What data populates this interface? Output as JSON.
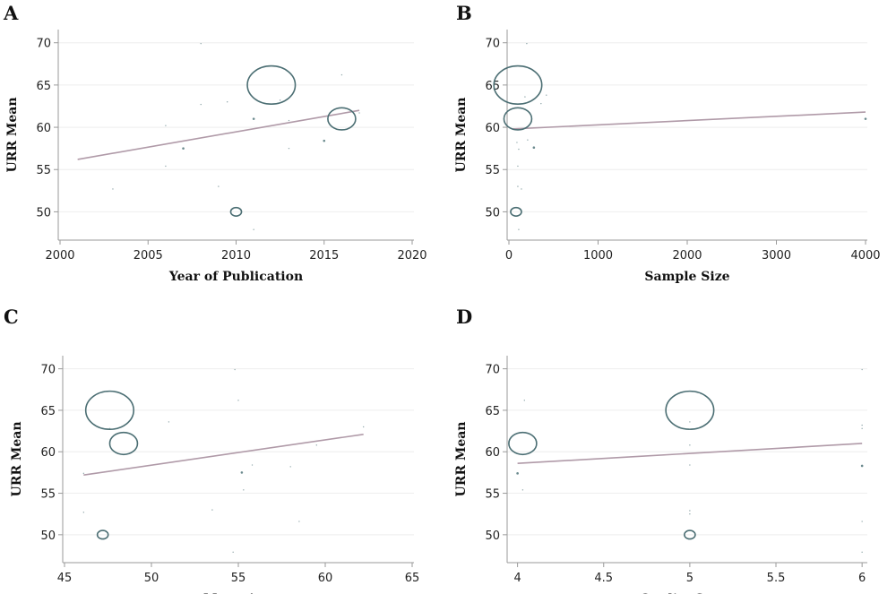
{
  "chart_data": [
    {
      "panel": "A",
      "type": "scatter",
      "xlabel": "Year of Publication",
      "ylabel": "URR Mean",
      "xlim": [
        2000,
        2020
      ],
      "ylim": [
        47.5,
        70.5
      ],
      "xticks": [
        2000,
        2005,
        2010,
        2015,
        2020
      ],
      "yticks": [
        50,
        55,
        60,
        65,
        70
      ],
      "grid": "horizontal",
      "fit_line": [
        [
          2001,
          56.2
        ],
        [
          2017,
          62.0
        ]
      ],
      "points": [
        {
          "x": 2012,
          "y": 65,
          "w": 5.5
        },
        {
          "x": 2016,
          "y": 61,
          "w": 3.0
        },
        {
          "x": 2010,
          "y": 50,
          "w": 0.9
        },
        {
          "x": 2011,
          "y": 61,
          "w": 0.7
        },
        {
          "x": 2015,
          "y": 58.4,
          "w": 0.5
        },
        {
          "x": 2007,
          "y": 57.5,
          "w": 0.5
        },
        {
          "x": 2008,
          "y": 69.9,
          "w": 0.3
        },
        {
          "x": 2016,
          "y": 66.2,
          "w": 0.3
        },
        {
          "x": 2008,
          "y": 62.7,
          "w": 0.3
        },
        {
          "x": 2009.5,
          "y": 63.0,
          "w": 0.3
        },
        {
          "x": 2012.5,
          "y": 63.2,
          "w": 0.3
        },
        {
          "x": 2013,
          "y": 60.8,
          "w": 0.3
        },
        {
          "x": 2006,
          "y": 60.2,
          "w": 0.3
        },
        {
          "x": 2013,
          "y": 57.5,
          "w": 0.3
        },
        {
          "x": 2006,
          "y": 55.4,
          "w": 0.3
        },
        {
          "x": 2003,
          "y": 52.7,
          "w": 0.3
        },
        {
          "x": 2009,
          "y": 53.0,
          "w": 0.3
        },
        {
          "x": 2011,
          "y": 47.9,
          "w": 0.3
        },
        {
          "x": 2017,
          "y": 61.7,
          "w": 0.3
        }
      ]
    },
    {
      "panel": "B",
      "type": "scatter",
      "xlabel": "Sample Size",
      "ylabel": "URR Mean",
      "xlim": [
        0,
        4000
      ],
      "ylim": [
        47.5,
        70.5
      ],
      "xticks": [
        0,
        1000,
        2000,
        3000,
        4000
      ],
      "yticks": [
        50,
        55,
        60,
        65,
        70
      ],
      "grid": "horizontal",
      "fit_line": [
        [
          40,
          59.8
        ],
        [
          4000,
          61.8
        ]
      ],
      "points": [
        {
          "x": 100,
          "y": 65,
          "w": 5.5
        },
        {
          "x": 100,
          "y": 61,
          "w": 3.0
        },
        {
          "x": 80,
          "y": 50,
          "w": 0.9
        },
        {
          "x": 4000,
          "y": 61,
          "w": 0.7
        },
        {
          "x": 200,
          "y": 69.9,
          "w": 0.3
        },
        {
          "x": 420,
          "y": 63.8,
          "w": 0.3
        },
        {
          "x": 360,
          "y": 62.8,
          "w": 0.3
        },
        {
          "x": 180,
          "y": 63.6,
          "w": 0.3
        },
        {
          "x": 280,
          "y": 57.6,
          "w": 0.5
        },
        {
          "x": 210,
          "y": 58.5,
          "w": 0.3
        },
        {
          "x": 90,
          "y": 58.2,
          "w": 0.3
        },
        {
          "x": 110,
          "y": 57.4,
          "w": 0.3
        },
        {
          "x": 100,
          "y": 55.4,
          "w": 0.3
        },
        {
          "x": 140,
          "y": 52.7,
          "w": 0.3
        },
        {
          "x": 100,
          "y": 53.0,
          "w": 0.3
        },
        {
          "x": 110,
          "y": 47.9,
          "w": 0.3
        }
      ]
    },
    {
      "panel": "C",
      "type": "scatter",
      "xlabel": "Mean Age",
      "ylabel": "URR Mean",
      "xlim": [
        45,
        65
      ],
      "ylim": [
        47.5,
        70.5
      ],
      "xticks": [
        45,
        50,
        55,
        60,
        65
      ],
      "yticks": [
        50,
        55,
        60,
        65,
        70
      ],
      "grid": "horizontal",
      "fit_line": [
        [
          46.1,
          57.2
        ],
        [
          62.2,
          62.1
        ]
      ],
      "points": [
        {
          "x": 47.6,
          "y": 65,
          "w": 5.5
        },
        {
          "x": 48.4,
          "y": 61,
          "w": 3.0
        },
        {
          "x": 47.2,
          "y": 50,
          "w": 0.9
        },
        {
          "x": 55.2,
          "y": 57.5,
          "w": 0.5
        },
        {
          "x": 54.8,
          "y": 69.9,
          "w": 0.3
        },
        {
          "x": 55.0,
          "y": 66.2,
          "w": 0.3
        },
        {
          "x": 51.0,
          "y": 63.6,
          "w": 0.3
        },
        {
          "x": 47.6,
          "y": 62.8,
          "w": 0.3
        },
        {
          "x": 62.2,
          "y": 63.0,
          "w": 0.3
        },
        {
          "x": 59.5,
          "y": 60.8,
          "w": 0.3
        },
        {
          "x": 55.8,
          "y": 58.4,
          "w": 0.3
        },
        {
          "x": 58.0,
          "y": 58.2,
          "w": 0.3
        },
        {
          "x": 55.3,
          "y": 55.4,
          "w": 0.3
        },
        {
          "x": 46.1,
          "y": 57.4,
          "w": 0.3
        },
        {
          "x": 46.1,
          "y": 52.7,
          "w": 0.3
        },
        {
          "x": 53.5,
          "y": 53.0,
          "w": 0.3
        },
        {
          "x": 58.5,
          "y": 51.6,
          "w": 0.3
        },
        {
          "x": 54.7,
          "y": 47.9,
          "w": 0.3
        }
      ]
    },
    {
      "panel": "D",
      "type": "scatter",
      "xlabel": "Quality Score",
      "ylabel": "URR Mean",
      "xlim": [
        3.95,
        6.02
      ],
      "ylim": [
        47.5,
        70.5
      ],
      "xticks": [
        4,
        4.5,
        5,
        5.5,
        6
      ],
      "yticks": [
        50,
        55,
        60,
        65,
        70
      ],
      "grid": "horizontal",
      "fit_line": [
        [
          4.0,
          58.6
        ],
        [
          6.0,
          61.0
        ]
      ],
      "points": [
        {
          "x": 5.0,
          "y": 65,
          "w": 5.5
        },
        {
          "x": 4.03,
          "y": 61,
          "w": 3.0
        },
        {
          "x": 5.0,
          "y": 50,
          "w": 0.9
        },
        {
          "x": 4.0,
          "y": 57.4,
          "w": 0.5
        },
        {
          "x": 6.0,
          "y": 58.3,
          "w": 0.5
        },
        {
          "x": 6.0,
          "y": 69.9,
          "w": 0.3
        },
        {
          "x": 4.04,
          "y": 66.2,
          "w": 0.3
        },
        {
          "x": 5.0,
          "y": 63.6,
          "w": 0.3
        },
        {
          "x": 5.0,
          "y": 62.7,
          "w": 0.3
        },
        {
          "x": 6.0,
          "y": 63.2,
          "w": 0.3
        },
        {
          "x": 6.0,
          "y": 62.8,
          "w": 0.3
        },
        {
          "x": 5.0,
          "y": 60.8,
          "w": 0.3
        },
        {
          "x": 5.0,
          "y": 58.4,
          "w": 0.3
        },
        {
          "x": 4.03,
          "y": 55.4,
          "w": 0.3
        },
        {
          "x": 5.0,
          "y": 52.9,
          "w": 0.3
        },
        {
          "x": 5.0,
          "y": 52.5,
          "w": 0.3
        },
        {
          "x": 6.0,
          "y": 51.6,
          "w": 0.3
        },
        {
          "x": 6.0,
          "y": 47.9,
          "w": 0.3
        }
      ]
    }
  ]
}
